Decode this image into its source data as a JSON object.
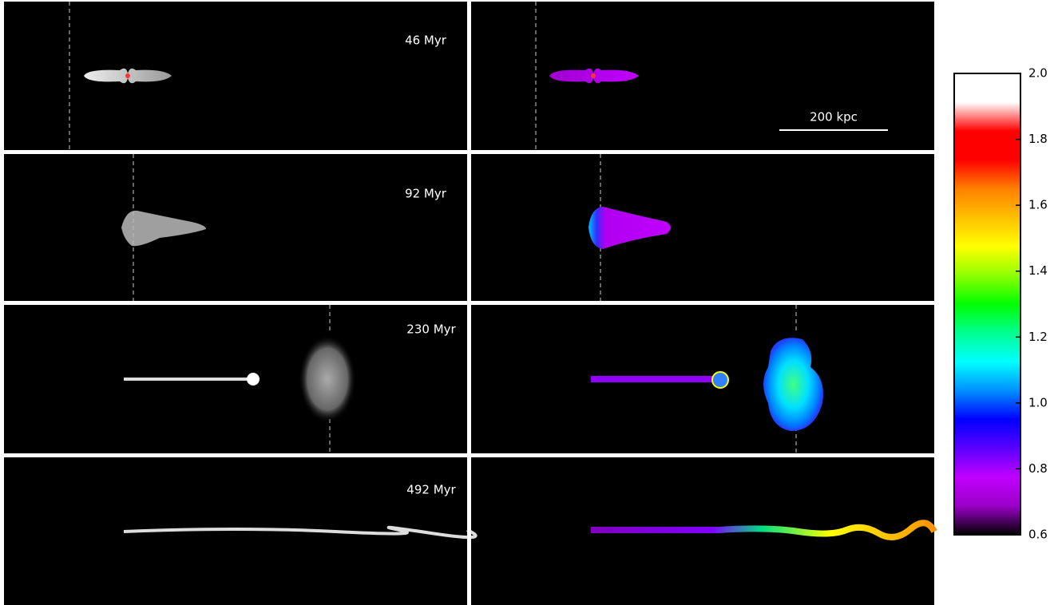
{
  "chart_data": {
    "type": "colorbar",
    "panels": [
      "46 Myr",
      "92 Myr",
      "230 Myr",
      "492 Myr"
    ],
    "scale_bar": "200 kpc",
    "ylim": [
      0.6,
      2.0
    ],
    "yticks": [
      0.6,
      0.8,
      {
        "value": 1.0,
        "label": "1.0"
      },
      1.2,
      1.4,
      1.6,
      1.8,
      {
        "value": 2.0,
        "label": "2.0"
      }
    ],
    "colormap": [
      "#000000",
      "#9b00c8",
      "#c000ff",
      "#5a00ff",
      "#0000ff",
      "#0090ff",
      "#00ffff",
      "#00ff90",
      "#00ff00",
      "#90ff00",
      "#ffff00",
      "#ffc000",
      "#ff8000",
      "#ff0000",
      "#ff0000",
      "#ffffff",
      "#ffffff"
    ]
  }
}
